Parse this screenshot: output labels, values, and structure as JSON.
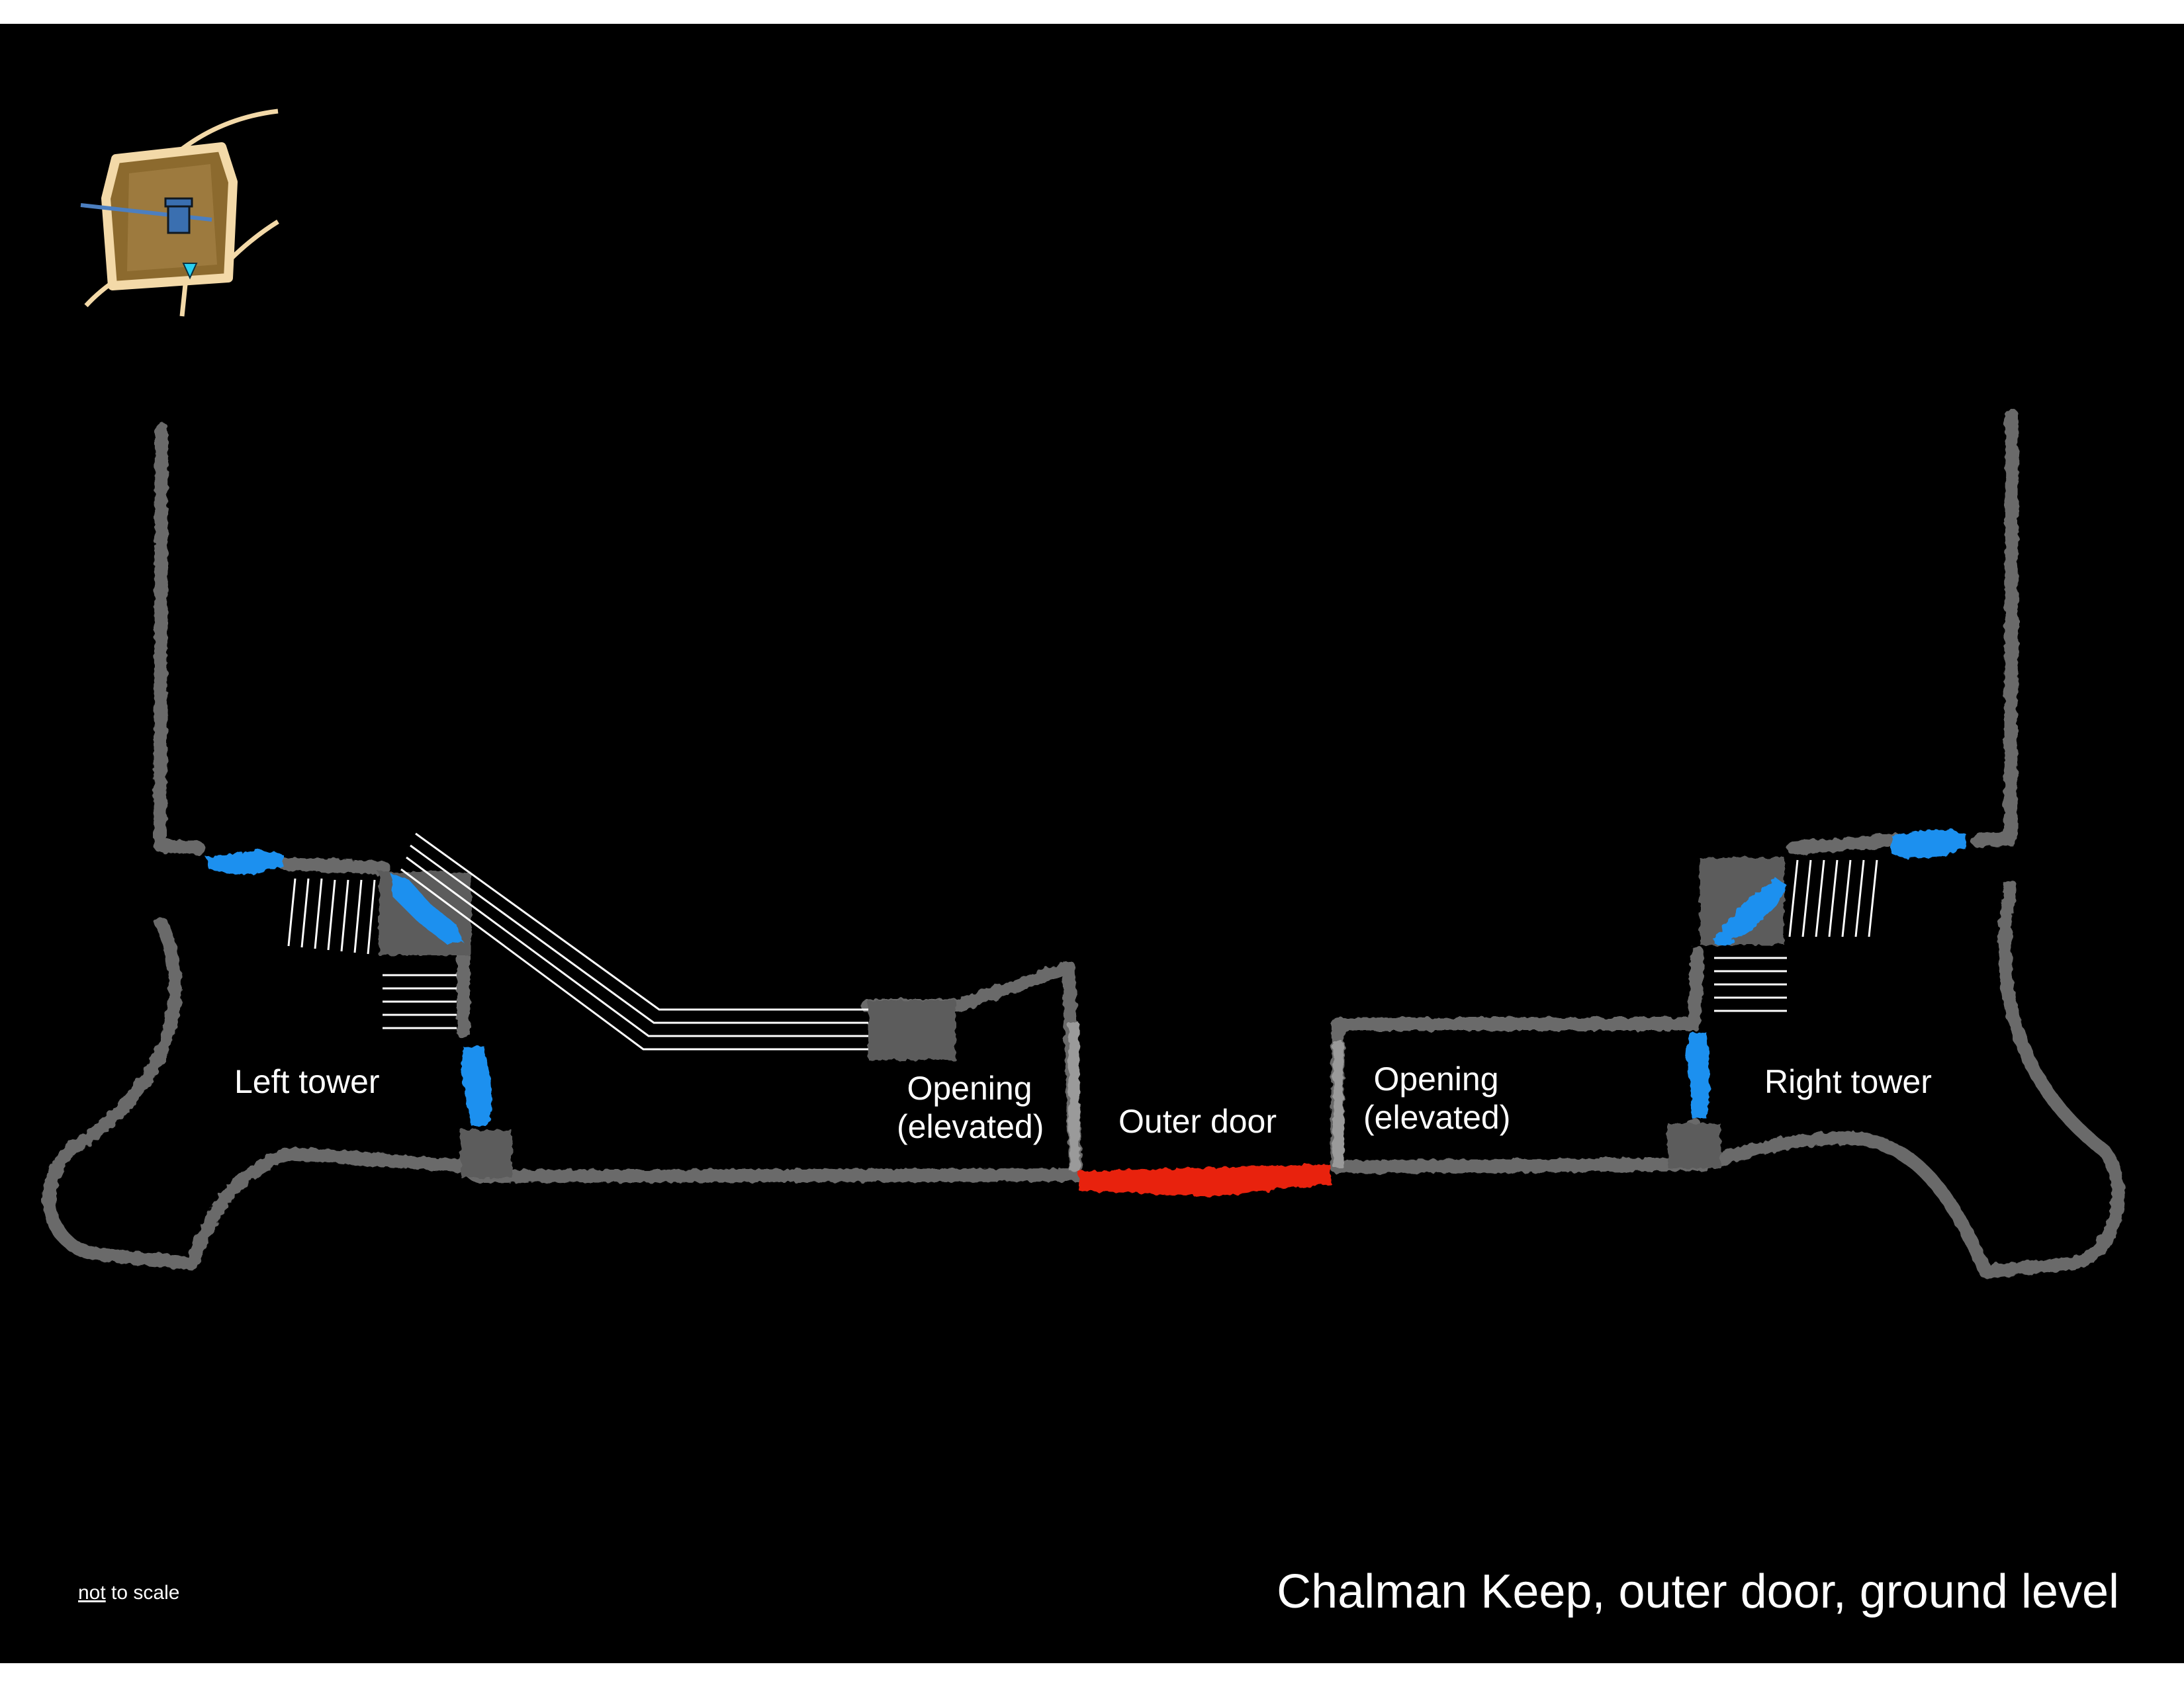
{
  "title": "Chalman Keep, outer door, ground level",
  "scale_note": {
    "emph": "not",
    "rest": " to scale"
  },
  "labels": {
    "left_tower": "Left tower",
    "right_tower": "Right tower",
    "opening_left_line1": "Opening",
    "opening_left_line2": "(elevated)",
    "opening_right_line1": "Opening",
    "opening_right_line2": "(elevated)",
    "outer_door": "Outer door"
  },
  "colors": {
    "background": "#000000",
    "wall": "#6b6b6b",
    "wall_light": "#9a9a9a",
    "door": "#e8200f",
    "guard": "#1e90ef",
    "stairs": "#ffffff",
    "platform": "#5c5c5c",
    "minimap_parchment": "#8c6a2e",
    "minimap_border": "#f3d9a8"
  },
  "icons": {
    "minimap": "minimap-icon",
    "guard": "guard-icon",
    "keep": "keep-tower-icon",
    "marker": "position-marker-icon"
  }
}
